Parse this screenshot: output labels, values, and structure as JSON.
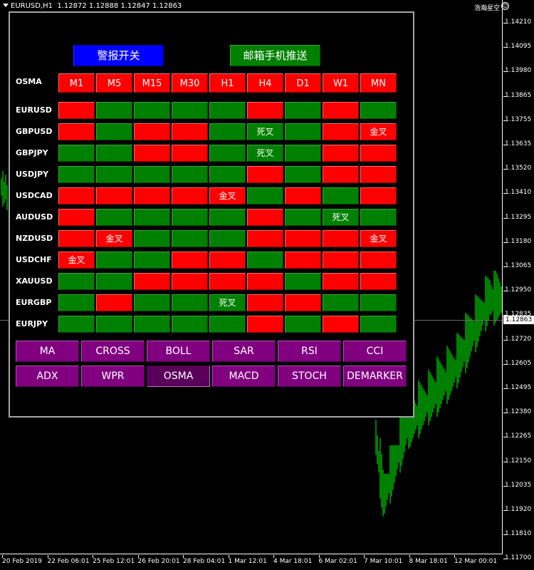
{
  "chart_header": {
    "symbol_info": "EURUSD,H1",
    "ohlc": "1.12872 1.12888 1.12847 1.12863",
    "brand": "浩瀚星空",
    "smiley": "☺"
  },
  "price_axis": {
    "ticks": [
      "1.14210",
      "1.14095",
      "1.13980",
      "1.13865",
      "1.13755",
      "1.13635",
      "1.13520",
      "1.13410",
      "1.13295",
      "1.13180",
      "1.13065",
      "1.12950",
      "1.12835",
      "1.12720",
      "1.12605",
      "1.12495",
      "1.12380",
      "1.12265",
      "1.12150",
      "1.12035",
      "1.11920",
      "1.11810",
      "1.11700"
    ],
    "current_price": "1.12863"
  },
  "time_axis": {
    "ticks": [
      "20 Feb 2019",
      "22 Feb 06:01",
      "25 Feb 12:01",
      "26 Feb 20:01",
      "28 Feb 04:01",
      "1 Mar 12:01",
      "4 Mar 18:01",
      "6 Mar 02:01",
      "7 Mar 10:01",
      "8 Mar 18:01",
      "12 Mar 00:01"
    ]
  },
  "colors": {
    "red": "#ff0000",
    "green": "#008000",
    "blue": "#0000ff",
    "purple": "#800080",
    "candle": "#00ff00"
  },
  "panel": {
    "alarm_button": "警报开关",
    "email_button": "邮箱手机推送",
    "indicator_title": "OSMA",
    "timeframes": [
      "M1",
      "M5",
      "M15",
      "M30",
      "H1",
      "H4",
      "D1",
      "W1",
      "MN"
    ],
    "rows": [
      {
        "symbol": "EURUSD",
        "cells": [
          {
            "c": "red",
            "t": ""
          },
          {
            "c": "green",
            "t": ""
          },
          {
            "c": "green",
            "t": ""
          },
          {
            "c": "green",
            "t": ""
          },
          {
            "c": "green",
            "t": ""
          },
          {
            "c": "red",
            "t": ""
          },
          {
            "c": "green",
            "t": ""
          },
          {
            "c": "red",
            "t": ""
          },
          {
            "c": "green",
            "t": ""
          }
        ]
      },
      {
        "symbol": "GBPUSD",
        "cells": [
          {
            "c": "red",
            "t": ""
          },
          {
            "c": "green",
            "t": ""
          },
          {
            "c": "red",
            "t": ""
          },
          {
            "c": "red",
            "t": ""
          },
          {
            "c": "green",
            "t": ""
          },
          {
            "c": "green",
            "t": "死叉"
          },
          {
            "c": "green",
            "t": ""
          },
          {
            "c": "red",
            "t": ""
          },
          {
            "c": "red",
            "t": "金叉"
          }
        ]
      },
      {
        "symbol": "GBPJPY",
        "cells": [
          {
            "c": "green",
            "t": ""
          },
          {
            "c": "green",
            "t": ""
          },
          {
            "c": "red",
            "t": ""
          },
          {
            "c": "red",
            "t": ""
          },
          {
            "c": "green",
            "t": ""
          },
          {
            "c": "green",
            "t": "死叉"
          },
          {
            "c": "green",
            "t": ""
          },
          {
            "c": "red",
            "t": ""
          },
          {
            "c": "red",
            "t": ""
          }
        ]
      },
      {
        "symbol": "USDJPY",
        "cells": [
          {
            "c": "green",
            "t": ""
          },
          {
            "c": "green",
            "t": ""
          },
          {
            "c": "green",
            "t": ""
          },
          {
            "c": "green",
            "t": ""
          },
          {
            "c": "green",
            "t": ""
          },
          {
            "c": "red",
            "t": ""
          },
          {
            "c": "green",
            "t": ""
          },
          {
            "c": "red",
            "t": ""
          },
          {
            "c": "red",
            "t": ""
          }
        ]
      },
      {
        "symbol": "USDCAD",
        "cells": [
          {
            "c": "red",
            "t": ""
          },
          {
            "c": "red",
            "t": ""
          },
          {
            "c": "red",
            "t": ""
          },
          {
            "c": "red",
            "t": ""
          },
          {
            "c": "red",
            "t": "金叉"
          },
          {
            "c": "green",
            "t": ""
          },
          {
            "c": "red",
            "t": ""
          },
          {
            "c": "green",
            "t": ""
          },
          {
            "c": "red",
            "t": ""
          }
        ]
      },
      {
        "symbol": "AUDUSD",
        "cells": [
          {
            "c": "red",
            "t": ""
          },
          {
            "c": "green",
            "t": ""
          },
          {
            "c": "green",
            "t": ""
          },
          {
            "c": "green",
            "t": ""
          },
          {
            "c": "green",
            "t": ""
          },
          {
            "c": "red",
            "t": ""
          },
          {
            "c": "green",
            "t": ""
          },
          {
            "c": "green",
            "t": "死叉"
          },
          {
            "c": "green",
            "t": ""
          }
        ]
      },
      {
        "symbol": "NZDUSD",
        "cells": [
          {
            "c": "red",
            "t": ""
          },
          {
            "c": "red",
            "t": "金叉"
          },
          {
            "c": "green",
            "t": ""
          },
          {
            "c": "green",
            "t": ""
          },
          {
            "c": "green",
            "t": ""
          },
          {
            "c": "red",
            "t": ""
          },
          {
            "c": "red",
            "t": ""
          },
          {
            "c": "red",
            "t": ""
          },
          {
            "c": "red",
            "t": "金叉"
          }
        ]
      },
      {
        "symbol": "USDCHF",
        "cells": [
          {
            "c": "red",
            "t": "金叉"
          },
          {
            "c": "green",
            "t": ""
          },
          {
            "c": "green",
            "t": ""
          },
          {
            "c": "red",
            "t": ""
          },
          {
            "c": "red",
            "t": ""
          },
          {
            "c": "green",
            "t": ""
          },
          {
            "c": "red",
            "t": ""
          },
          {
            "c": "red",
            "t": ""
          },
          {
            "c": "red",
            "t": ""
          }
        ]
      },
      {
        "symbol": "XAUUSD",
        "cells": [
          {
            "c": "green",
            "t": ""
          },
          {
            "c": "green",
            "t": ""
          },
          {
            "c": "red",
            "t": ""
          },
          {
            "c": "red",
            "t": ""
          },
          {
            "c": "red",
            "t": ""
          },
          {
            "c": "red",
            "t": ""
          },
          {
            "c": "green",
            "t": ""
          },
          {
            "c": "red",
            "t": ""
          },
          {
            "c": "red",
            "t": ""
          }
        ]
      },
      {
        "symbol": "EURGBP",
        "cells": [
          {
            "c": "green",
            "t": ""
          },
          {
            "c": "red",
            "t": ""
          },
          {
            "c": "green",
            "t": ""
          },
          {
            "c": "green",
            "t": ""
          },
          {
            "c": "green",
            "t": "死叉"
          },
          {
            "c": "red",
            "t": ""
          },
          {
            "c": "red",
            "t": ""
          },
          {
            "c": "green",
            "t": ""
          },
          {
            "c": "green",
            "t": ""
          }
        ]
      },
      {
        "symbol": "EURJPY",
        "cells": [
          {
            "c": "green",
            "t": ""
          },
          {
            "c": "green",
            "t": ""
          },
          {
            "c": "green",
            "t": ""
          },
          {
            "c": "green",
            "t": ""
          },
          {
            "c": "green",
            "t": ""
          },
          {
            "c": "red",
            "t": ""
          },
          {
            "c": "green",
            "t": ""
          },
          {
            "c": "red",
            "t": ""
          },
          {
            "c": "green",
            "t": ""
          }
        ]
      }
    ],
    "indicators": [
      [
        "MA",
        "CROSS",
        "BOLL",
        "SAR",
        "RSI",
        "CCI"
      ],
      [
        "ADX",
        "WPR",
        "OSMA",
        "MACD",
        "STOCH",
        "DEMARKER"
      ]
    ],
    "selected_indicator": "OSMA"
  }
}
